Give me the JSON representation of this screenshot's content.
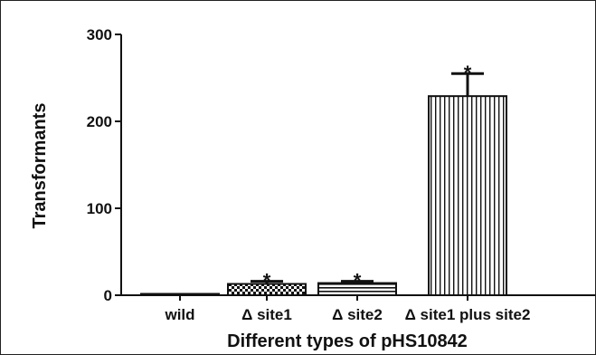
{
  "chart_data": {
    "type": "bar",
    "title": "",
    "xlabel": "Different types of pHS10842",
    "ylabel": "Transformants",
    "categories": [
      "wild",
      "Δ site1",
      "Δ site2",
      "Δ site1 plus site2"
    ],
    "values": [
      1,
      13,
      14,
      229
    ],
    "error_upper": [
      0,
      3,
      2,
      26
    ],
    "significance": [
      "",
      "*",
      "*",
      "*"
    ],
    "patterns": [
      "solid",
      "checker",
      "horizontal-stripes",
      "vertical-stripes"
    ],
    "ylim": [
      0,
      300
    ],
    "yticks": [
      0,
      100,
      200,
      300
    ],
    "grid": false,
    "legend": "none",
    "colors": {
      "bar_stroke": "#111111",
      "bar_fill": "#ffffff",
      "axis": "#111111"
    }
  }
}
